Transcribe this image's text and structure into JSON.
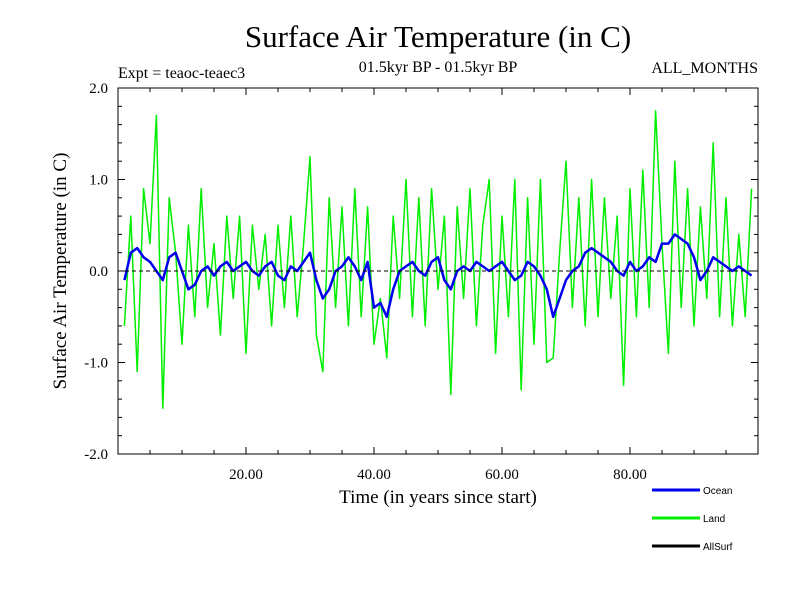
{
  "chart_data": {
    "type": "line",
    "title": "Surface Air Temperature (in C)",
    "subtitle_left": "Expt = teaoc-teaec3",
    "subtitle_center": "01.5kyr BP - 01.5kyr BP",
    "subtitle_right": "ALL_MONTHS",
    "xlabel": "Time (in years since start)",
    "ylabel": "Surface Air Temperature (in C)",
    "xlim": [
      0,
      100
    ],
    "ylim": [
      -2.0,
      2.0
    ],
    "x_ticks": [
      20,
      40,
      60,
      80
    ],
    "x_tick_labels": [
      "20.00",
      "40.00",
      "60.00",
      "80.00"
    ],
    "y_ticks": [
      -2.0,
      -1.0,
      0.0,
      1.0,
      2.0
    ],
    "y_tick_labels": [
      "-2.0",
      "-1.0",
      "0.0",
      "1.0",
      "2.0"
    ],
    "reference_line": 0.0,
    "legend_placement": "bottom-right",
    "series": [
      {
        "name": "Ocean",
        "color": "#0000ee",
        "sample_interval_years": 1,
        "x": [
          1,
          2,
          3,
          4,
          5,
          6,
          7,
          8,
          9,
          10,
          11,
          12,
          13,
          14,
          15,
          16,
          17,
          18,
          19,
          20,
          21,
          22,
          23,
          24,
          25,
          26,
          27,
          28,
          29,
          30,
          31,
          32,
          33,
          34,
          35,
          36,
          37,
          38,
          39,
          40,
          41,
          42,
          43,
          44,
          45,
          46,
          47,
          48,
          49,
          50,
          51,
          52,
          53,
          54,
          55,
          56,
          57,
          58,
          59,
          60,
          61,
          62,
          63,
          64,
          65,
          66,
          67,
          68,
          69,
          70,
          71,
          72,
          73,
          74,
          75,
          76,
          77,
          78,
          79,
          80,
          81,
          82,
          83,
          84,
          85,
          86,
          87,
          88,
          89,
          90,
          91,
          92,
          93,
          94,
          95,
          96,
          97,
          98,
          99
        ],
        "values": [
          -0.1,
          0.2,
          0.25,
          0.15,
          0.1,
          0.0,
          -0.1,
          0.15,
          0.2,
          0.0,
          -0.2,
          -0.15,
          0.0,
          0.05,
          -0.05,
          0.05,
          0.1,
          0.0,
          0.05,
          0.1,
          0.0,
          -0.05,
          0.05,
          0.1,
          -0.05,
          -0.1,
          0.05,
          0.0,
          0.1,
          0.2,
          -0.1,
          -0.3,
          -0.2,
          0.0,
          0.05,
          0.15,
          0.05,
          -0.1,
          0.1,
          -0.4,
          -0.35,
          -0.5,
          -0.2,
          0.0,
          0.05,
          0.1,
          0.0,
          -0.05,
          0.1,
          0.15,
          -0.1,
          -0.2,
          0.0,
          0.05,
          0.0,
          0.1,
          0.05,
          0.0,
          0.05,
          0.1,
          0.0,
          -0.1,
          -0.05,
          0.1,
          0.05,
          -0.05,
          -0.2,
          -0.5,
          -0.3,
          -0.1,
          0.0,
          0.05,
          0.2,
          0.25,
          0.2,
          0.15,
          0.1,
          0.0,
          -0.05,
          0.1,
          0.0,
          0.05,
          0.15,
          0.1,
          0.3,
          0.3,
          0.4,
          0.35,
          0.3,
          0.15,
          -0.1,
          0.0,
          0.15,
          0.1,
          0.05,
          0.0,
          0.05,
          0.0,
          -0.05
        ]
      },
      {
        "name": "Land",
        "color": "#00ee00",
        "sample_interval_years": 1,
        "x": [
          1,
          2,
          3,
          4,
          5,
          6,
          7,
          8,
          9,
          10,
          11,
          12,
          13,
          14,
          15,
          16,
          17,
          18,
          19,
          20,
          21,
          22,
          23,
          24,
          25,
          26,
          27,
          28,
          29,
          30,
          31,
          32,
          33,
          34,
          35,
          36,
          37,
          38,
          39,
          40,
          41,
          42,
          43,
          44,
          45,
          46,
          47,
          48,
          49,
          50,
          51,
          52,
          53,
          54,
          55,
          56,
          57,
          58,
          59,
          60,
          61,
          62,
          63,
          64,
          65,
          66,
          67,
          68,
          69,
          70,
          71,
          72,
          73,
          74,
          75,
          76,
          77,
          78,
          79,
          80,
          81,
          82,
          83,
          84,
          85,
          86,
          87,
          88,
          89,
          90,
          91,
          92,
          93,
          94,
          95,
          96,
          97,
          98,
          99
        ],
        "values": [
          -0.6,
          0.6,
          -1.1,
          0.9,
          0.3,
          1.7,
          -1.5,
          0.8,
          0.2,
          -0.8,
          0.5,
          -0.5,
          0.9,
          -0.4,
          0.3,
          -0.7,
          0.6,
          -0.3,
          0.6,
          -0.9,
          0.5,
          -0.2,
          0.4,
          -0.6,
          0.5,
          -0.4,
          0.6,
          -0.5,
          0.3,
          1.25,
          -0.7,
          -1.1,
          0.8,
          -0.4,
          0.7,
          -0.6,
          0.9,
          -0.5,
          0.7,
          -0.8,
          -0.3,
          -0.95,
          0.6,
          -0.3,
          1.0,
          -0.5,
          0.8,
          -0.6,
          0.9,
          -0.2,
          0.6,
          -1.35,
          0.7,
          -0.3,
          0.9,
          -0.6,
          0.5,
          1.0,
          -0.9,
          0.6,
          -0.5,
          1.0,
          -1.3,
          0.8,
          -0.8,
          1.0,
          -1.0,
          -0.95,
          0.2,
          1.2,
          -0.4,
          0.8,
          -0.6,
          1.0,
          -0.5,
          0.8,
          -0.3,
          0.6,
          -1.25,
          0.9,
          -0.5,
          1.1,
          -0.4,
          1.75,
          0.3,
          -0.9,
          1.2,
          -0.4,
          0.9,
          -0.6,
          0.7,
          -0.3,
          1.4,
          -0.5,
          0.8,
          -0.6,
          0.4,
          -0.5,
          0.9
        ]
      },
      {
        "name": "AllSurf",
        "color": "#000000",
        "values": []
      }
    ]
  }
}
